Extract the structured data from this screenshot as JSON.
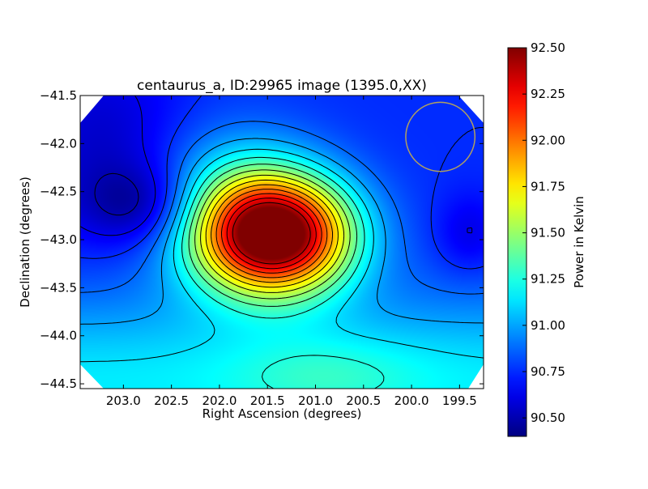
{
  "chart_data": {
    "type": "heatmap",
    "title": "centaurus_a, ID:29965 image (1395.0,XX)",
    "xlabel": "Right Ascension (degrees)",
    "ylabel": "Declination (degrees)",
    "xlim": [
      203.45,
      199.25
    ],
    "ylim": [
      -44.55,
      -41.5
    ],
    "x_ticks": [
      203.0,
      202.5,
      202.0,
      201.5,
      201.0,
      200.5,
      200.0,
      199.5
    ],
    "x_tick_labels": [
      "203.0",
      "202.5",
      "202.0",
      "201.5",
      "201.0",
      "200.5",
      "200.0",
      "199.5"
    ],
    "y_ticks": [
      -41.5,
      -42.0,
      -42.5,
      -43.0,
      -43.5,
      -44.0,
      -44.5
    ],
    "y_tick_labels": [
      "−41.5",
      "−42.0",
      "−42.5",
      "−43.0",
      "−43.5",
      "−44.0",
      "−44.5"
    ],
    "colormap": "jet",
    "colorbar": {
      "label": "Power in Kelvin",
      "range": [
        90.4,
        92.5
      ],
      "ticks": [
        90.5,
        90.75,
        91.0,
        91.25,
        91.5,
        91.75,
        92.0,
        92.25,
        92.5
      ],
      "tick_labels": [
        "90.50",
        "90.75",
        "91.00",
        "91.25",
        "91.50",
        "91.75",
        "92.00",
        "92.25",
        "92.50"
      ]
    },
    "field_components": [
      {
        "kind": "background",
        "value": 90.75
      },
      {
        "kind": "peak",
        "ra": 201.4,
        "dec": -42.95,
        "amplitude": 1.75,
        "sigma_ra": 0.55,
        "sigma_dec": 0.42
      },
      {
        "kind": "plateau",
        "ra": 201.85,
        "dec": -42.7,
        "amplitude": 0.45,
        "sigma_ra": 0.6,
        "sigma_dec": 0.55
      },
      {
        "kind": "trough",
        "ra": 202.75,
        "dec": -42.65,
        "amplitude": -0.3,
        "sigma_ra": 0.45,
        "sigma_dec": 0.3
      },
      {
        "kind": "trough",
        "ra": 203.2,
        "dec": -42.0,
        "amplitude": -0.2,
        "sigma_ra": 0.6,
        "sigma_dec": 0.7
      },
      {
        "kind": "dip",
        "ra": 199.4,
        "dec": -42.95,
        "amplitude": -0.15,
        "sigma_ra": 0.25,
        "sigma_dec": 0.3
      },
      {
        "kind": "southern_rise",
        "dec": -44.5,
        "amplitude": 0.4,
        "sigma_dec": 0.65
      },
      {
        "kind": "southern_peak",
        "ra": 200.9,
        "dec": -44.4,
        "amplitude": 0.15,
        "sigma_ra": 0.7,
        "sigma_dec": 0.3
      }
    ],
    "contour_step": 0.125,
    "annotations": [
      {
        "kind": "circle",
        "ra": 199.7,
        "dec": -41.93,
        "radius_ra": 0.36,
        "color": "#b0a060"
      }
    ],
    "grid": false
  }
}
